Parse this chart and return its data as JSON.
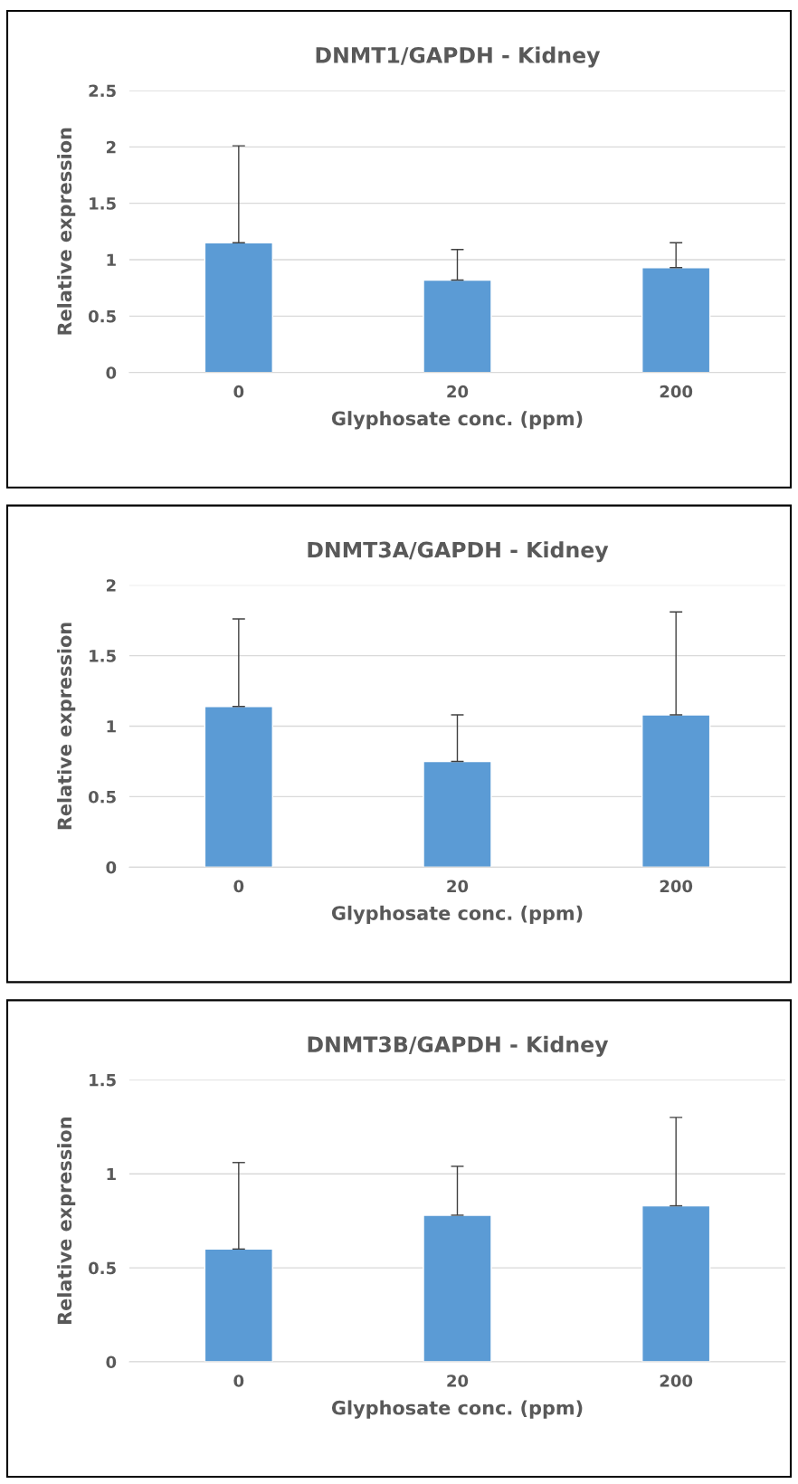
{
  "chart_data": [
    {
      "type": "bar",
      "title": "DNMT1/GAPDH - Kidney",
      "xlabel": "Glyphosate conc. (ppm)",
      "ylabel": "Relative expression",
      "categories": [
        "0",
        "20",
        "200"
      ],
      "values": [
        1.15,
        0.82,
        0.93
      ],
      "errors": [
        [
          1.15,
          2.01
        ],
        [
          0.82,
          1.09
        ],
        [
          0.93,
          1.15
        ]
      ],
      "color": "#5b9bd5",
      "ylim": [
        0,
        2.5
      ],
      "yticks": [
        0,
        0.5,
        1,
        1.5,
        2,
        2.5
      ],
      "grid": "y",
      "legend": false
    },
    {
      "type": "bar",
      "title": "DNMT3A/GAPDH - Kidney",
      "xlabel": "Glyphosate conc. (ppm)",
      "ylabel": "Relative expression",
      "categories": [
        "0",
        "20",
        "200"
      ],
      "values": [
        1.14,
        0.75,
        1.08
      ],
      "errors": [
        [
          1.14,
          1.76
        ],
        [
          0.75,
          1.08
        ],
        [
          1.08,
          1.81
        ]
      ],
      "color": "#5b9bd5",
      "ylim": [
        0,
        2
      ],
      "yticks": [
        0,
        0.5,
        1,
        1.5,
        2
      ],
      "grid": "y",
      "legend": false
    },
    {
      "type": "bar",
      "title": "DNMT3B/GAPDH - Kidney",
      "xlabel": "Glyphosate conc. (ppm)",
      "ylabel": "Relative expression",
      "categories": [
        "0",
        "20",
        "200"
      ],
      "values": [
        0.6,
        0.78,
        0.83
      ],
      "errors": [
        [
          0.6,
          1.06
        ],
        [
          0.78,
          1.04
        ],
        [
          0.83,
          1.3
        ]
      ],
      "color": "#5b9bd5",
      "ylim": [
        0,
        1.5
      ],
      "yticks": [
        0,
        0.5,
        1,
        1.5
      ],
      "grid": "y",
      "legend": false
    }
  ]
}
